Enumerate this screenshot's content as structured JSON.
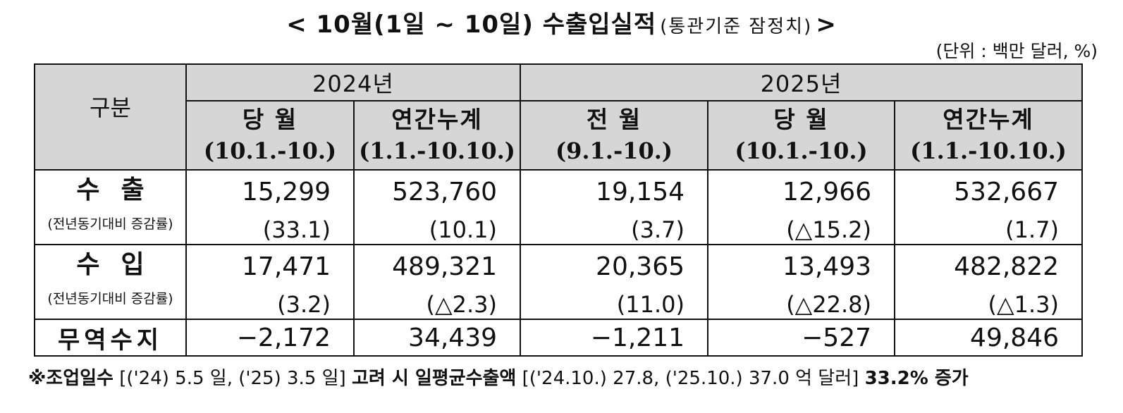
{
  "title": {
    "main": "< 10월(1일 ~ 10일) 수출입실적",
    "sub": "(통관기준  잠정치)",
    "close": ">"
  },
  "unit": "(단위 : 백만  달러, %)",
  "table": {
    "gubun": "구분",
    "years": [
      "2024년",
      "2025년"
    ],
    "periods": [
      {
        "name": "당  월",
        "range": "(10.1.-10.)"
      },
      {
        "name": "연간누계",
        "range": "(1.1.-10.10.)"
      },
      {
        "name": "전  월",
        "range": "(9.1.-10.)"
      },
      {
        "name": "당  월",
        "range": "(10.1.-10.)"
      },
      {
        "name": "연간누계",
        "range": "(1.1.-10.10.)"
      }
    ],
    "export": {
      "label": "수출",
      "sub": "(전년동기대비 증감률)",
      "values": [
        "15,299",
        "523,760",
        "19,154",
        "12,966",
        "532,667"
      ],
      "pct": [
        "(33.1)",
        "(10.1)",
        "(3.7)",
        "(△15.2)",
        "(1.7)"
      ]
    },
    "import": {
      "label": "수입",
      "sub": "(전년동기대비 증감률)",
      "values": [
        "17,471",
        "489,321",
        "20,365",
        "13,493",
        "482,822"
      ],
      "pct": [
        "(3.2)",
        "(△2.3)",
        "(11.0)",
        "(△22.8)",
        "(△1.3)"
      ]
    },
    "balance": {
      "label": "무역수지",
      "values": [
        "−2,172",
        "34,439",
        "−1,211",
        "−527",
        "49,846"
      ]
    }
  },
  "footnote": {
    "part1": "※조업일수",
    "part2": " [('24) 5.5 일, ('25) 3.5 일] ",
    "part3": "고려  시  일평균수출액",
    "part4": " [('24.10.) 27.8, ('25.10.) 37.0 억  달러] ",
    "part5": "33.2%  증가"
  }
}
